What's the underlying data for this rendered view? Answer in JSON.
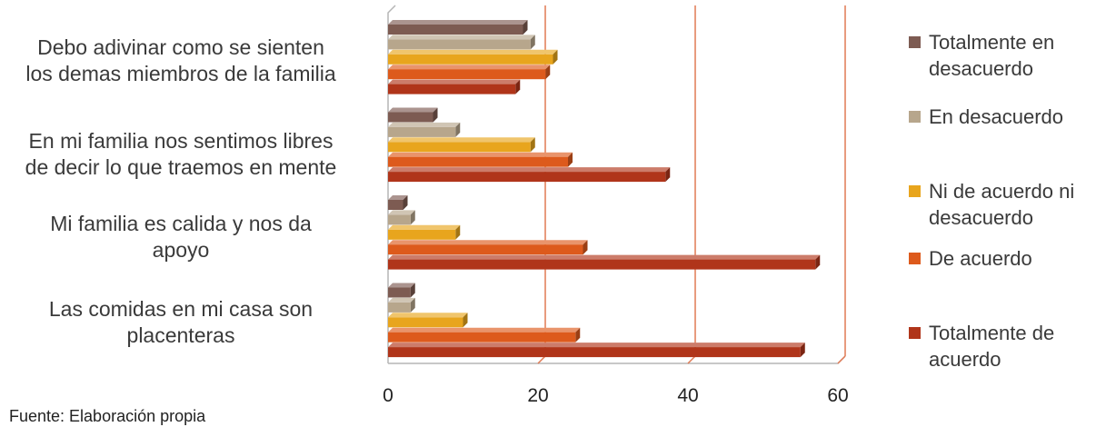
{
  "chart_data": {
    "type": "bar",
    "orientation": "horizontal",
    "style": "3d",
    "categories": [
      "Debo adivinar como se sienten los demas miembros de la familia",
      "En mi familia nos sentimos libres de decir lo que traemos en mente",
      "Mi familia es calida y nos da apoyo",
      "Las comidas en mi casa son placenteras"
    ],
    "category_lines": [
      [
        "Debo adivinar como se sienten",
        "los demas miembros de la familia"
      ],
      [
        "En mi familia nos sentimos libres",
        "de decir lo que traemos en mente"
      ],
      [
        "Mi familia es calida y nos da",
        "apoyo"
      ],
      [
        "Las comidas en mi casa son",
        "placenteras"
      ]
    ],
    "series": [
      {
        "name": "Totalmente en desacuerdo",
        "name_lines": [
          "Totalmente en",
          "desacuerdo"
        ],
        "color": "#7d5b52",
        "values": [
          18,
          6,
          2,
          3
        ]
      },
      {
        "name": "En desacuerdo",
        "name_lines": [
          "En desacuerdo"
        ],
        "color": "#b7a68c",
        "values": [
          19,
          9,
          3,
          3
        ]
      },
      {
        "name": "Ni de acuerdo ni desacuerdo",
        "name_lines": [
          "Ni de acuerdo ni",
          "desacuerdo"
        ],
        "color": "#e8a51d",
        "values": [
          22,
          19,
          9,
          10
        ]
      },
      {
        "name": "De acuerdo",
        "name_lines": [
          "De acuerdo"
        ],
        "color": "#dd5a1c",
        "values": [
          21,
          24,
          26,
          25
        ]
      },
      {
        "name": "Totalmente de acuerdo",
        "name_lines": [
          "Totalmente de",
          "acuerdo"
        ],
        "color": "#b0351a",
        "values": [
          17,
          37,
          57,
          55
        ]
      }
    ],
    "xlim": [
      0,
      60
    ],
    "xticks": [
      "0",
      "20",
      "40",
      "60"
    ],
    "grid": true,
    "gridline_color": "#e07a54",
    "legend": "right"
  },
  "source": "Fuente: Elaboración propia"
}
